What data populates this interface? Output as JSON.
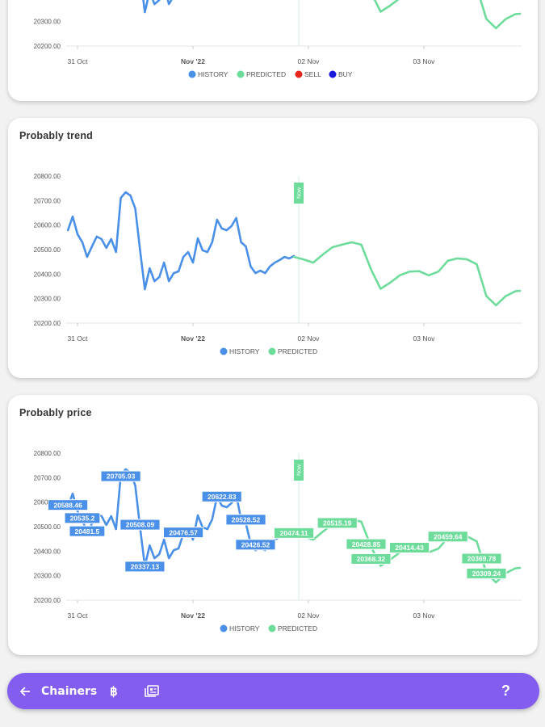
{
  "colors": {
    "history": "#4a8fe8",
    "predicted": "#6ddc9a",
    "sell": "#e8261c",
    "buy": "#1a1adb",
    "now": "#6ddc9a",
    "navbar": "#835cf0"
  },
  "chart_data": [
    {
      "type": "line",
      "title": "",
      "ylim": [
        20200,
        20800
      ],
      "yticks": [
        "20200.00",
        "20300.00"
      ],
      "xticks": [
        {
          "time": "2022-10-31T00:00",
          "label": "31 Oct"
        },
        {
          "time": "2022-11-01T00:00",
          "label": "Nov '22",
          "bold": true
        },
        {
          "time": "2022-11-02T00:00",
          "label": "02 Nov"
        },
        {
          "time": "2022-11-03T00:00",
          "label": "03 Nov"
        }
      ],
      "legend": [
        "HISTORY",
        "PREDICTED",
        "SELL",
        "BUY"
      ],
      "legend_placement": "bottom",
      "now": "2022-11-01T22:00",
      "now_label": "",
      "annotations": []
    },
    {
      "type": "line",
      "title": "Probably trend",
      "ylim": [
        20200,
        20800
      ],
      "yticks": [
        "20200.00",
        "20300.00",
        "20400.00",
        "20500.00",
        "20600.00",
        "20700.00",
        "20800.00"
      ],
      "xticks": [
        {
          "time": "2022-10-31T00:00",
          "label": "31 Oct"
        },
        {
          "time": "2022-11-01T00:00",
          "label": "Nov '22",
          "bold": true
        },
        {
          "time": "2022-11-02T00:00",
          "label": "02 Nov"
        },
        {
          "time": "2022-11-03T00:00",
          "label": "03 Nov"
        }
      ],
      "legend": [
        "HISTORY",
        "PREDICTED"
      ],
      "legend_placement": "bottom",
      "now": "2022-11-01T22:00",
      "now_label": "Now",
      "annotations": []
    },
    {
      "type": "line",
      "title": "Probably price",
      "ylim": [
        20200,
        20800
      ],
      "yticks": [
        "20200.00",
        "20300.00",
        "20400.00",
        "20500.00",
        "20600.00",
        "20700.00",
        "20800.00"
      ],
      "xticks": [
        {
          "time": "2022-10-31T00:00",
          "label": "31 Oct"
        },
        {
          "time": "2022-11-01T00:00",
          "label": "Nov '22",
          "bold": true
        },
        {
          "time": "2022-11-02T00:00",
          "label": "02 Nov"
        },
        {
          "time": "2022-11-03T00:00",
          "label": "03 Nov"
        }
      ],
      "legend": [
        "HISTORY",
        "PREDICTED"
      ],
      "legend_placement": "bottom",
      "now": "2022-11-01T22:00",
      "now_label": "Now",
      "annotations": [
        {
          "series": "history",
          "time": "2022-10-30T22:00",
          "value": 20588.46,
          "label": "20588.46"
        },
        {
          "series": "history",
          "time": "2022-10-31T01:00",
          "value": 20535.2,
          "label": "20535.2"
        },
        {
          "series": "history",
          "time": "2022-10-31T02:00",
          "value": 20481.5,
          "label": "20481.5"
        },
        {
          "series": "history",
          "time": "2022-10-31T09:00",
          "value": 20705.93,
          "label": "20705.93"
        },
        {
          "series": "history",
          "time": "2022-10-31T13:00",
          "value": 20508.09,
          "label": "20508.09"
        },
        {
          "series": "history",
          "time": "2022-10-31T14:00",
          "value": 20337.13,
          "label": "20337.13"
        },
        {
          "series": "history",
          "time": "2022-10-31T22:00",
          "value": 20476.57,
          "label": "20476.57"
        },
        {
          "series": "history",
          "time": "2022-11-01T06:00",
          "value": 20622.83,
          "label": "20622.83"
        },
        {
          "series": "history",
          "time": "2022-11-01T11:00",
          "value": 20528.52,
          "label": "20528.52"
        },
        {
          "series": "history",
          "time": "2022-11-01T13:00",
          "value": 20426.52,
          "label": "20426.52"
        },
        {
          "series": "predicted",
          "time": "2022-11-01T21:00",
          "value": 20474.11,
          "label": "20474.11"
        },
        {
          "series": "predicted",
          "time": "2022-11-02T06:00",
          "value": 20515.19,
          "label": "20515.19"
        },
        {
          "series": "predicted",
          "time": "2022-11-02T12:00",
          "value": 20428.85,
          "label": "20428.85"
        },
        {
          "series": "predicted",
          "time": "2022-11-02T13:00",
          "value": 20368.32,
          "label": "20368.32"
        },
        {
          "series": "predicted",
          "time": "2022-11-02T21:00",
          "value": 20414.43,
          "label": "20414.43"
        },
        {
          "series": "predicted",
          "time": "2022-11-03T05:00",
          "value": 20459.64,
          "label": "20459.64"
        },
        {
          "series": "predicted",
          "time": "2022-11-03T12:00",
          "value": 20369.78,
          "label": "20369.78"
        },
        {
          "series": "predicted",
          "time": "2022-11-03T13:00",
          "value": 20309.24,
          "label": "20309.24"
        }
      ]
    }
  ],
  "series": {
    "history": [
      [
        "2022-10-30T22:00",
        20579
      ],
      [
        "2022-10-30T23:00",
        20635
      ],
      [
        "2022-10-31T00:00",
        20563
      ],
      [
        "2022-10-31T01:00",
        20530
      ],
      [
        "2022-10-31T02:00",
        20470
      ],
      [
        "2022-10-31T03:00",
        20513
      ],
      [
        "2022-10-31T04:00",
        20553
      ],
      [
        "2022-10-31T05:00",
        20543
      ],
      [
        "2022-10-31T06:00",
        20507
      ],
      [
        "2022-10-31T07:00",
        20543
      ],
      [
        "2022-10-31T08:00",
        20490
      ],
      [
        "2022-10-31T09:00",
        20711
      ],
      [
        "2022-10-31T10:00",
        20734
      ],
      [
        "2022-10-31T11:00",
        20721
      ],
      [
        "2022-10-31T12:00",
        20668
      ],
      [
        "2022-10-31T13:00",
        20497
      ],
      [
        "2022-10-31T14:00",
        20338
      ],
      [
        "2022-10-31T15:00",
        20424
      ],
      [
        "2022-10-31T16:00",
        20371
      ],
      [
        "2022-10-31T17:00",
        20388
      ],
      [
        "2022-10-31T18:00",
        20447
      ],
      [
        "2022-10-31T19:00",
        20371
      ],
      [
        "2022-10-31T20:00",
        20404
      ],
      [
        "2022-10-31T21:00",
        20411
      ],
      [
        "2022-10-31T22:00",
        20470
      ],
      [
        "2022-10-31T23:00",
        20490
      ],
      [
        "2022-11-01T00:00",
        20447
      ],
      [
        "2022-11-01T01:00",
        20546
      ],
      [
        "2022-11-01T02:00",
        20497
      ],
      [
        "2022-11-01T03:00",
        20490
      ],
      [
        "2022-11-01T04:00",
        20530
      ],
      [
        "2022-11-01T05:00",
        20622
      ],
      [
        "2022-11-01T06:00",
        20586
      ],
      [
        "2022-11-01T07:00",
        20579
      ],
      [
        "2022-11-01T08:00",
        20596
      ],
      [
        "2022-11-01T09:00",
        20629
      ],
      [
        "2022-11-01T10:00",
        20530
      ],
      [
        "2022-11-01T11:00",
        20513
      ],
      [
        "2022-11-01T12:00",
        20431
      ],
      [
        "2022-11-01T13:00",
        20404
      ],
      [
        "2022-11-01T14:00",
        20414
      ],
      [
        "2022-11-01T15:00",
        20404
      ],
      [
        "2022-11-01T16:00",
        20431
      ],
      [
        "2022-11-01T17:00",
        20447
      ],
      [
        "2022-11-01T18:00",
        20457
      ],
      [
        "2022-11-01T19:00",
        20470
      ],
      [
        "2022-11-01T20:00",
        20464
      ],
      [
        "2022-11-01T21:00",
        20474
      ]
    ],
    "predicted": [
      [
        "2022-11-01T21:00",
        20470
      ],
      [
        "2022-11-01T23:00",
        20460
      ],
      [
        "2022-11-02T01:00",
        20447
      ],
      [
        "2022-11-02T03:00",
        20480
      ],
      [
        "2022-11-02T05:00",
        20510
      ],
      [
        "2022-11-02T07:00",
        20520
      ],
      [
        "2022-11-02T09:00",
        20530
      ],
      [
        "2022-11-02T11:00",
        20520
      ],
      [
        "2022-11-02T13:00",
        20420
      ],
      [
        "2022-11-02T15:00",
        20340
      ],
      [
        "2022-11-02T17:00",
        20365
      ],
      [
        "2022-11-02T19:00",
        20395
      ],
      [
        "2022-11-02T21:00",
        20410
      ],
      [
        "2022-11-02T23:00",
        20412
      ],
      [
        "2022-11-03T01:00",
        20395
      ],
      [
        "2022-11-03T03:00",
        20410
      ],
      [
        "2022-11-03T05:00",
        20455
      ],
      [
        "2022-11-03T07:00",
        20464
      ],
      [
        "2022-11-03T09:00",
        20460
      ],
      [
        "2022-11-03T11:00",
        20440
      ],
      [
        "2022-11-03T13:00",
        20310
      ],
      [
        "2022-11-03T15:00",
        20273
      ],
      [
        "2022-11-03T17:00",
        20310
      ],
      [
        "2022-11-03T19:00",
        20330
      ],
      [
        "2022-11-03T20:00",
        20332
      ]
    ]
  },
  "navbar": {
    "back_icon": "arrow-left-icon",
    "title": "Chainers",
    "bitcoin_icon": "bitcoin-icon",
    "news_icon": "newspaper-icon",
    "help_label": "?"
  }
}
